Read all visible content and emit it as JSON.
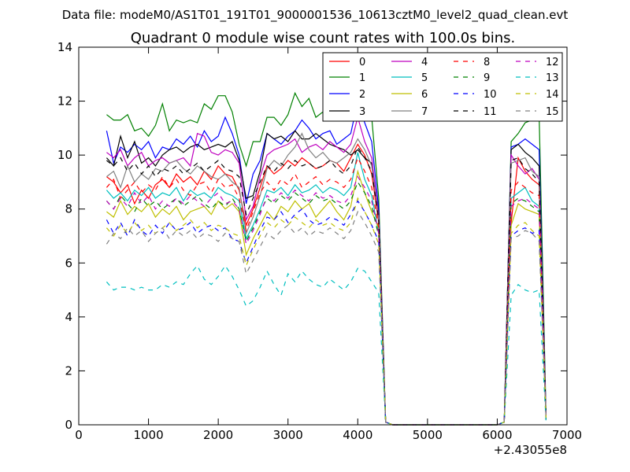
{
  "chart_data": {
    "type": "line",
    "suptitle": "Data file: modeM0/AS1T01_191T01_9000001536_10613cztM0_level2_quad_clean.evt",
    "title": "Quadrant 0 module wise count rates with 100.0s bins.",
    "xlabel": "",
    "ylabel": "",
    "x_offset_label": "+2.43055e8",
    "xlim": [
      0,
      7000
    ],
    "ylim": [
      0,
      14
    ],
    "xticks": [
      "0",
      "1000",
      "2000",
      "3000",
      "4000",
      "5000",
      "6000",
      "7000"
    ],
    "yticks": [
      "0",
      "2",
      "4",
      "6",
      "8",
      "10",
      "12",
      "14"
    ],
    "grid": false,
    "legend_position": "top-right",
    "x": [
      400,
      500,
      600,
      700,
      800,
      900,
      1000,
      1100,
      1200,
      1300,
      1400,
      1500,
      1600,
      1700,
      1800,
      1900,
      2000,
      2100,
      2200,
      2300,
      2400,
      2500,
      2600,
      2700,
      2800,
      2900,
      3000,
      3100,
      3200,
      3300,
      3400,
      3500,
      3600,
      3700,
      3800,
      3900,
      4000,
      4100,
      4200,
      4300,
      4400,
      4500,
      4600,
      4700,
      4800,
      4900,
      5000,
      5100,
      5200,
      5300,
      5400,
      5500,
      5600,
      5700,
      5800,
      5900,
      6000,
      6100,
      6200,
      6300,
      6400,
      6500,
      6600,
      6700
    ],
    "series": [
      {
        "name": "0",
        "color": "#ff0000",
        "dash": "solid",
        "values": [
          9.2,
          9.0,
          8.6,
          8.9,
          8.2,
          8.7,
          8.4,
          8.9,
          9.1,
          8.8,
          9.3,
          9.0,
          9.2,
          8.9,
          9.4,
          9.1,
          9.6,
          9.3,
          9.2,
          8.7,
          7.4,
          8.0,
          8.8,
          9.6,
          9.3,
          9.5,
          9.8,
          9.6,
          9.9,
          9.7,
          9.5,
          9.6,
          9.8,
          9.7,
          9.4,
          9.9,
          10.4,
          10.0,
          9.3,
          7.5,
          0.1,
          0,
          0,
          0,
          0,
          0,
          0,
          0,
          0,
          0,
          0,
          0,
          0,
          0,
          0,
          0,
          0,
          0.1,
          7.5,
          9.9,
          9.4,
          9.1,
          8.9,
          0.2
        ]
      },
      {
        "name": "1",
        "color": "#008000",
        "dash": "solid",
        "values": [
          11.5,
          11.3,
          11.3,
          11.5,
          10.9,
          11.0,
          10.7,
          11.1,
          11.9,
          10.9,
          11.3,
          11.2,
          11.3,
          11.2,
          11.9,
          11.7,
          12.2,
          12.2,
          11.6,
          10.4,
          9.6,
          10.5,
          10.5,
          11.4,
          11.4,
          11.1,
          11.5,
          12.3,
          11.8,
          12.1,
          11.4,
          11.6,
          11.5,
          11.8,
          11.3,
          11.9,
          12.7,
          12.2,
          11.4,
          8.4,
          0.1,
          0,
          0,
          0,
          0,
          0,
          0,
          0,
          0,
          0,
          0,
          0,
          0,
          0,
          0,
          0,
          0,
          0.1,
          10.5,
          10.8,
          11.2,
          11.3,
          11.5,
          0.3
        ]
      },
      {
        "name": "2",
        "color": "#0000ff",
        "dash": "solid",
        "values": [
          10.9,
          9.7,
          10.3,
          10.1,
          10.4,
          10.2,
          10.5,
          9.9,
          10.3,
          10.2,
          10.6,
          10.4,
          10.7,
          10.3,
          10.9,
          10.5,
          10.7,
          11.4,
          10.8,
          10.0,
          8.2,
          9.3,
          9.8,
          10.8,
          10.6,
          10.4,
          10.7,
          10.9,
          11.3,
          11.0,
          10.6,
          10.8,
          10.9,
          10.4,
          10.6,
          10.8,
          12.0,
          11.2,
          10.5,
          8.0,
          0.1,
          0,
          0,
          0,
          0,
          0,
          0,
          0,
          0,
          0,
          0,
          0,
          0,
          0,
          0,
          0,
          0,
          0.1,
          10.3,
          10.4,
          10.6,
          10.4,
          10.2,
          0.2
        ]
      },
      {
        "name": "3",
        "color": "#000000",
        "dash": "solid",
        "values": [
          9.9,
          9.6,
          10.7,
          9.9,
          10.5,
          9.7,
          9.9,
          9.6,
          10.0,
          10.2,
          10.3,
          10.1,
          10.3,
          10.4,
          10.2,
          10.3,
          10.4,
          10.3,
          10.5,
          9.8,
          8.4,
          8.5,
          9.4,
          10.8,
          10.6,
          10.7,
          10.5,
          10.9,
          10.6,
          10.6,
          10.8,
          10.6,
          10.4,
          10.3,
          10.2,
          10.0,
          10.2,
          9.9,
          9.7,
          7.8,
          0.1,
          0,
          0,
          0,
          0,
          0,
          0,
          0,
          0,
          0,
          0,
          0,
          0,
          0,
          0,
          0,
          0,
          0.1,
          10.2,
          10.4,
          10.1,
          9.9,
          9.6,
          0.2
        ]
      },
      {
        "name": "4",
        "color": "#bf00bf",
        "dash": "solid",
        "values": [
          10.1,
          9.9,
          10.2,
          9.6,
          9.9,
          10.1,
          9.6,
          9.8,
          9.9,
          9.7,
          9.8,
          9.9,
          9.6,
          10.8,
          10.7,
          10.1,
          10.0,
          10.2,
          10.1,
          9.7,
          7.6,
          8.1,
          9.2,
          10.0,
          10.2,
          10.3,
          10.4,
          10.6,
          10.1,
          10.3,
          10.4,
          10.2,
          10.5,
          10.3,
          10.1,
          10.4,
          11.4,
          10.5,
          9.9,
          7.7,
          0.1,
          0,
          0,
          0,
          0,
          0,
          0,
          0,
          0,
          0,
          0,
          0,
          0,
          0,
          0,
          0,
          0,
          0.1,
          10.0,
          9.6,
          9.3,
          9.5,
          9.1,
          0.2
        ]
      },
      {
        "name": "5",
        "color": "#00bfbf",
        "dash": "solid",
        "values": [
          8.7,
          8.4,
          8.6,
          8.3,
          8.7,
          8.5,
          8.8,
          8.4,
          8.6,
          8.5,
          8.8,
          8.3,
          8.7,
          8.5,
          8.6,
          8.4,
          8.8,
          8.6,
          8.5,
          8.3,
          6.9,
          7.4,
          8.0,
          8.7,
          8.6,
          8.8,
          8.5,
          8.9,
          8.6,
          8.7,
          8.9,
          8.6,
          8.8,
          8.7,
          8.5,
          8.8,
          10.1,
          9.1,
          8.5,
          7.1,
          0.1,
          0,
          0,
          0,
          0,
          0,
          0,
          0,
          0,
          0,
          0,
          0,
          0,
          0,
          0,
          0,
          0,
          0.1,
          8.4,
          8.6,
          8.8,
          8.3,
          8.1,
          0.2
        ]
      },
      {
        "name": "6",
        "color": "#bfbf00",
        "dash": "solid",
        "values": [
          7.9,
          7.7,
          8.3,
          7.8,
          8.1,
          7.9,
          8.2,
          7.7,
          8.0,
          7.8,
          8.1,
          7.6,
          7.9,
          8.0,
          8.1,
          7.8,
          8.3,
          8.0,
          8.2,
          7.9,
          6.3,
          6.9,
          7.4,
          7.9,
          7.6,
          8.1,
          7.9,
          8.3,
          8.0,
          8.2,
          7.7,
          8.0,
          8.3,
          7.9,
          7.6,
          8.1,
          9.4,
          8.6,
          7.9,
          7.3,
          0.1,
          0,
          0,
          0,
          0,
          0,
          0,
          0,
          0,
          0,
          0,
          0,
          0,
          0,
          0,
          0,
          0,
          0.1,
          7.4,
          8.2,
          8.0,
          7.9,
          7.8,
          0.2
        ]
      },
      {
        "name": "7",
        "color": "#808080",
        "dash": "solid",
        "values": [
          9.2,
          9.4,
          8.8,
          9.6,
          9.0,
          9.3,
          9.1,
          9.5,
          9.4,
          9.7,
          9.8,
          9.5,
          9.3,
          9.6,
          9.4,
          9.2,
          9.1,
          9.3,
          9.0,
          8.8,
          7.1,
          7.7,
          8.5,
          9.5,
          9.8,
          9.6,
          10.0,
          10.3,
          10.8,
          10.2,
          9.9,
          10.1,
          9.8,
          9.7,
          9.9,
          10.1,
          10.6,
          10.2,
          9.6,
          7.6,
          0.1,
          0,
          0,
          0,
          0,
          0,
          0,
          0,
          0,
          0,
          0,
          0,
          0,
          0,
          0,
          0,
          0,
          0.1,
          9.7,
          9.8,
          9.9,
          9.4,
          9.2,
          0.2
        ]
      },
      {
        "name": "8",
        "color": "#ff0000",
        "dash": "dashed",
        "values": [
          8.8,
          9.1,
          8.4,
          8.7,
          9.0,
          8.6,
          8.9,
          8.7,
          9.2,
          8.8,
          9.1,
          8.7,
          8.5,
          8.9,
          9.0,
          8.6,
          9.1,
          8.8,
          8.9,
          8.4,
          7.2,
          7.9,
          8.6,
          9.0,
          8.7,
          9.1,
          8.9,
          9.3,
          8.8,
          9.0,
          9.2,
          8.9,
          9.1,
          9.0,
          8.8,
          9.1,
          9.9,
          9.4,
          8.8,
          7.3,
          0.1,
          0,
          0,
          0,
          0,
          0,
          0,
          0,
          0,
          0,
          0,
          0,
          0,
          0,
          0,
          0,
          0,
          0.1,
          8.7,
          9.0,
          8.8,
          8.6,
          8.5,
          0.2
        ]
      },
      {
        "name": "9",
        "color": "#008000",
        "dash": "dashed",
        "values": [
          8.3,
          8.0,
          8.5,
          8.2,
          7.9,
          8.4,
          8.1,
          8.3,
          8.0,
          8.2,
          8.4,
          8.1,
          8.3,
          8.5,
          8.2,
          8.0,
          8.3,
          8.1,
          8.4,
          8.0,
          6.8,
          7.3,
          7.9,
          8.4,
          8.2,
          8.5,
          8.3,
          8.6,
          8.4,
          8.2,
          8.5,
          8.3,
          8.4,
          8.2,
          8.0,
          8.3,
          9.0,
          8.6,
          8.1,
          7.0,
          0.1,
          0,
          0,
          0,
          0,
          0,
          0,
          0,
          0,
          0,
          0,
          0,
          0,
          0,
          0,
          0,
          0,
          0.1,
          8.2,
          8.4,
          8.3,
          8.1,
          7.9,
          0.2
        ]
      },
      {
        "name": "10",
        "color": "#0000ff",
        "dash": "dashed",
        "values": [
          7.6,
          7.1,
          7.5,
          7.0,
          7.6,
          7.2,
          7.0,
          7.4,
          7.1,
          7.5,
          7.2,
          7.3,
          7.5,
          7.1,
          7.3,
          7.4,
          7.2,
          7.3,
          6.9,
          6.8,
          6.0,
          6.6,
          7.2,
          7.7,
          7.6,
          7.9,
          7.5,
          7.8,
          8.0,
          7.6,
          7.4,
          7.5,
          7.7,
          7.6,
          7.4,
          7.8,
          8.3,
          7.9,
          7.4,
          6.8,
          0.1,
          0,
          0,
          0,
          0,
          0,
          0,
          0,
          0,
          0,
          0,
          0,
          0,
          0,
          0,
          0,
          0,
          0.1,
          7.0,
          7.2,
          7.3,
          7.1,
          7.2,
          0.2
        ]
      },
      {
        "name": "11",
        "color": "#000000",
        "dash": "dashed",
        "values": [
          9.8,
          9.6,
          9.9,
          9.4,
          9.7,
          9.3,
          9.6,
          9.2,
          9.5,
          9.4,
          9.6,
          9.3,
          9.5,
          9.7,
          9.4,
          9.6,
          9.8,
          9.5,
          9.4,
          9.2,
          7.8,
          8.4,
          9.0,
          9.6,
          9.4,
          9.7,
          9.5,
          9.8,
          9.6,
          9.7,
          9.5,
          9.6,
          9.8,
          9.5,
          9.3,
          9.6,
          10.3,
          9.9,
          9.4,
          7.6,
          0.1,
          0,
          0,
          0,
          0,
          0,
          0,
          0,
          0,
          0,
          0,
          0,
          0,
          0,
          0,
          0,
          0,
          0.1,
          9.8,
          9.9,
          9.5,
          9.3,
          9.0,
          0.2
        ]
      },
      {
        "name": "12",
        "color": "#bf00bf",
        "dash": "dashed",
        "values": [
          8.3,
          8.0,
          8.4,
          8.1,
          8.6,
          8.2,
          8.5,
          8.0,
          8.3,
          8.1,
          8.4,
          8.2,
          8.5,
          8.3,
          8.1,
          8.4,
          8.6,
          8.2,
          8.3,
          8.0,
          6.7,
          7.2,
          7.8,
          8.5,
          8.3,
          8.6,
          8.4,
          8.7,
          8.5,
          8.3,
          8.6,
          8.4,
          8.5,
          8.3,
          8.2,
          8.5,
          9.2,
          8.8,
          8.3,
          7.1,
          0.1,
          0,
          0,
          0,
          0,
          0,
          0,
          0,
          0,
          0,
          0,
          0,
          0,
          0,
          0,
          0,
          0,
          0.1,
          8.1,
          8.3,
          8.4,
          8.2,
          8.0,
          0.2
        ]
      },
      {
        "name": "13",
        "color": "#00bfbf",
        "dash": "dashed",
        "values": [
          5.3,
          5.0,
          5.1,
          5.1,
          5.0,
          5.1,
          5.0,
          5.0,
          5.2,
          5.1,
          5.3,
          5.2,
          5.6,
          5.9,
          5.4,
          5.2,
          5.5,
          5.9,
          5.5,
          5.0,
          4.4,
          4.6,
          5.1,
          5.7,
          5.2,
          4.8,
          5.6,
          5.3,
          5.7,
          5.4,
          5.2,
          5.1,
          5.4,
          5.2,
          5.0,
          5.3,
          5.8,
          5.7,
          5.3,
          4.9,
          0.1,
          0,
          0,
          0,
          0,
          0,
          0,
          0,
          0,
          0,
          0,
          0,
          0,
          0,
          0,
          0,
          0,
          0.1,
          4.8,
          5.2,
          5.0,
          4.9,
          5.0,
          0.1
        ]
      },
      {
        "name": "14",
        "color": "#bfbf00",
        "dash": "dashed",
        "values": [
          7.3,
          7.0,
          7.4,
          7.1,
          7.5,
          7.2,
          7.4,
          7.1,
          7.3,
          7.5,
          7.2,
          7.4,
          7.6,
          7.3,
          7.5,
          7.2,
          7.4,
          7.3,
          7.1,
          7.0,
          5.9,
          6.5,
          7.0,
          7.5,
          7.3,
          7.6,
          7.4,
          7.7,
          7.5,
          7.3,
          7.6,
          7.4,
          7.5,
          7.3,
          7.2,
          7.5,
          8.4,
          7.9,
          7.4,
          6.7,
          0.1,
          0,
          0,
          0,
          0,
          0,
          0,
          0,
          0,
          0,
          0,
          0,
          0,
          0,
          0,
          0,
          0,
          0.1,
          7.1,
          7.4,
          7.5,
          7.2,
          7.0,
          0.2
        ]
      },
      {
        "name": "15",
        "color": "#808080",
        "dash": "dashed",
        "values": [
          6.7,
          7.1,
          6.9,
          7.3,
          7.0,
          7.2,
          6.8,
          7.1,
          7.3,
          6.9,
          7.2,
          7.0,
          7.2,
          6.9,
          7.1,
          7.0,
          6.8,
          7.1,
          6.9,
          6.8,
          5.6,
          6.1,
          6.6,
          7.1,
          6.9,
          7.2,
          7.4,
          7.1,
          7.3,
          7.0,
          7.2,
          7.1,
          7.3,
          7.1,
          6.9,
          7.2,
          7.9,
          7.5,
          7.0,
          6.4,
          0.1,
          0,
          0,
          0,
          0,
          0,
          0,
          0,
          0,
          0,
          0,
          0,
          0,
          0,
          0,
          0,
          0,
          0.1,
          6.9,
          7.0,
          7.2,
          7.1,
          6.8,
          0.2
        ]
      }
    ]
  }
}
